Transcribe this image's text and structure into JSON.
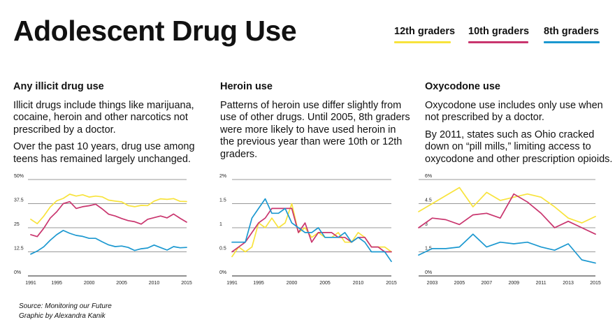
{
  "title": "Adolescent Drug Use",
  "legend": [
    {
      "label": "12th graders",
      "color": "#f8e33c"
    },
    {
      "label": "10th graders",
      "color": "#c9356e"
    },
    {
      "label": "8th graders",
      "color": "#1b98d0"
    }
  ],
  "panels": [
    {
      "title": "Any illicit drug use",
      "paragraphs": [
        "Illicit drugs include things like marijuana, cocaine, heroin and other narcotics not prescribed by a doctor.",
        "Over the past 10 years, drug use among teens has remained largely unchanged."
      ]
    },
    {
      "title": "Heroin use",
      "paragraphs": [
        "Patterns of heroin use differ slightly from use of other drugs. Until 2005, 8th graders were more likely to have used heroin in the previous year than were 10th or 12th graders."
      ]
    },
    {
      "title": "Oxycodone use",
      "paragraphs": [
        "Oxycodone use includes only use when not prescribed by a doctor.",
        "By 2011, states such as Ohio cracked down on “pill mills,” limiting access to oxycodone and other prescription opioids."
      ]
    }
  ],
  "footer": {
    "source": "Source: Monitoring our Future",
    "credit": "Graphic by Alexandra Kanik"
  },
  "chart_data": [
    {
      "type": "line",
      "title": "Any illicit drug use",
      "ylim": [
        0,
        50
      ],
      "yticks": [
        0,
        12.5,
        25,
        37.5,
        50
      ],
      "ytick_labels": [
        "0%",
        "12.5",
        "25",
        "37.5",
        "50%"
      ],
      "xlim": [
        1991,
        2015
      ],
      "xticks": [
        1991,
        1995,
        2000,
        2005,
        2010,
        2015
      ],
      "x": [
        1991,
        1992,
        1993,
        1994,
        1995,
        1996,
        1997,
        1998,
        1999,
        2000,
        2001,
        2002,
        2003,
        2004,
        2005,
        2006,
        2007,
        2008,
        2009,
        2010,
        2011,
        2012,
        2013,
        2014,
        2015
      ],
      "series": [
        {
          "name": "12th graders",
          "color": "#f8e33c",
          "values": [
            29.4,
            27.1,
            31.0,
            35.8,
            39.0,
            40.2,
            42.4,
            41.4,
            42.1,
            40.9,
            41.4,
            41.0,
            39.3,
            38.8,
            38.4,
            36.5,
            35.9,
            36.6,
            36.5,
            38.8,
            40.0,
            39.7,
            40.1,
            38.7,
            38.6
          ]
        },
        {
          "name": "10th graders",
          "color": "#c9356e",
          "values": [
            21.4,
            20.4,
            24.7,
            30.0,
            33.3,
            37.5,
            38.5,
            35.0,
            35.9,
            36.4,
            37.2,
            34.8,
            32.0,
            31.1,
            29.8,
            28.7,
            28.1,
            26.9,
            29.4,
            30.2,
            31.1,
            30.1,
            32.1,
            29.9,
            27.9
          ]
        },
        {
          "name": "8th graders",
          "color": "#1b98d0",
          "values": [
            11.3,
            12.9,
            15.1,
            18.5,
            21.4,
            23.6,
            22.1,
            21.0,
            20.5,
            19.5,
            19.5,
            17.7,
            16.1,
            15.2,
            15.5,
            14.8,
            13.2,
            14.1,
            14.5,
            16.0,
            14.7,
            13.4,
            15.2,
            14.6,
            14.8
          ]
        }
      ]
    },
    {
      "type": "line",
      "title": "Heroin use",
      "ylim": [
        0,
        2
      ],
      "yticks": [
        0,
        0.5,
        1,
        1.5,
        2
      ],
      "ytick_labels": [
        "0%",
        "0.5",
        "1",
        "1.5",
        "2%"
      ],
      "xlim": [
        1991,
        2015
      ],
      "xticks": [
        1991,
        1995,
        2000,
        2005,
        2010,
        2015
      ],
      "x": [
        1991,
        1992,
        1993,
        1994,
        1995,
        1996,
        1997,
        1998,
        1999,
        2000,
        2001,
        2002,
        2003,
        2004,
        2005,
        2006,
        2007,
        2008,
        2009,
        2010,
        2011,
        2012,
        2013,
        2014,
        2015
      ],
      "series": [
        {
          "name": "12th graders",
          "color": "#f8e33c",
          "values": [
            0.4,
            0.6,
            0.5,
            0.6,
            1.1,
            1.0,
            1.2,
            1.0,
            1.1,
            1.5,
            0.9,
            1.0,
            0.8,
            0.9,
            0.8,
            0.8,
            0.9,
            0.7,
            0.7,
            0.9,
            0.8,
            0.6,
            0.6,
            0.6,
            0.5
          ]
        },
        {
          "name": "10th graders",
          "color": "#c9356e",
          "values": [
            0.5,
            0.6,
            0.7,
            0.9,
            1.1,
            1.2,
            1.4,
            1.4,
            1.4,
            1.4,
            0.9,
            1.1,
            0.7,
            0.9,
            0.9,
            0.9,
            0.8,
            0.8,
            0.7,
            0.8,
            0.8,
            0.6,
            0.6,
            0.5,
            0.5
          ]
        },
        {
          "name": "8th graders",
          "color": "#1b98d0",
          "values": [
            0.7,
            0.7,
            0.7,
            1.2,
            1.4,
            1.6,
            1.3,
            1.3,
            1.4,
            1.1,
            1.0,
            0.9,
            0.9,
            1.0,
            0.8,
            0.8,
            0.8,
            0.9,
            0.7,
            0.8,
            0.7,
            0.5,
            0.5,
            0.5,
            0.3
          ]
        }
      ]
    },
    {
      "type": "line",
      "title": "Oxycodone use",
      "ylim": [
        0,
        6
      ],
      "yticks": [
        0,
        1.5,
        3,
        4.5,
        6
      ],
      "ytick_labels": [
        "0%",
        "1.5",
        "3",
        "4.5",
        "6%"
      ],
      "xlim": [
        2002,
        2015
      ],
      "xticks": [
        2003,
        2005,
        2007,
        2009,
        2011,
        2013,
        2015
      ],
      "x": [
        2002,
        2003,
        2004,
        2005,
        2006,
        2007,
        2008,
        2009,
        2010,
        2011,
        2012,
        2013,
        2014,
        2015
      ],
      "series": [
        {
          "name": "12th graders",
          "color": "#f8e33c",
          "values": [
            4.0,
            4.5,
            5.0,
            5.5,
            4.3,
            5.2,
            4.7,
            4.9,
            5.1,
            4.9,
            4.3,
            3.6,
            3.3,
            3.7
          ]
        },
        {
          "name": "10th graders",
          "color": "#c9356e",
          "values": [
            3.0,
            3.6,
            3.5,
            3.2,
            3.8,
            3.9,
            3.6,
            5.1,
            4.6,
            3.9,
            3.0,
            3.4,
            3.0,
            2.6
          ]
        },
        {
          "name": "8th graders",
          "color": "#1b98d0",
          "values": [
            1.3,
            1.7,
            1.7,
            1.8,
            2.6,
            1.8,
            2.1,
            2.0,
            2.1,
            1.8,
            1.6,
            2.0,
            1.0,
            0.8
          ]
        }
      ]
    }
  ]
}
